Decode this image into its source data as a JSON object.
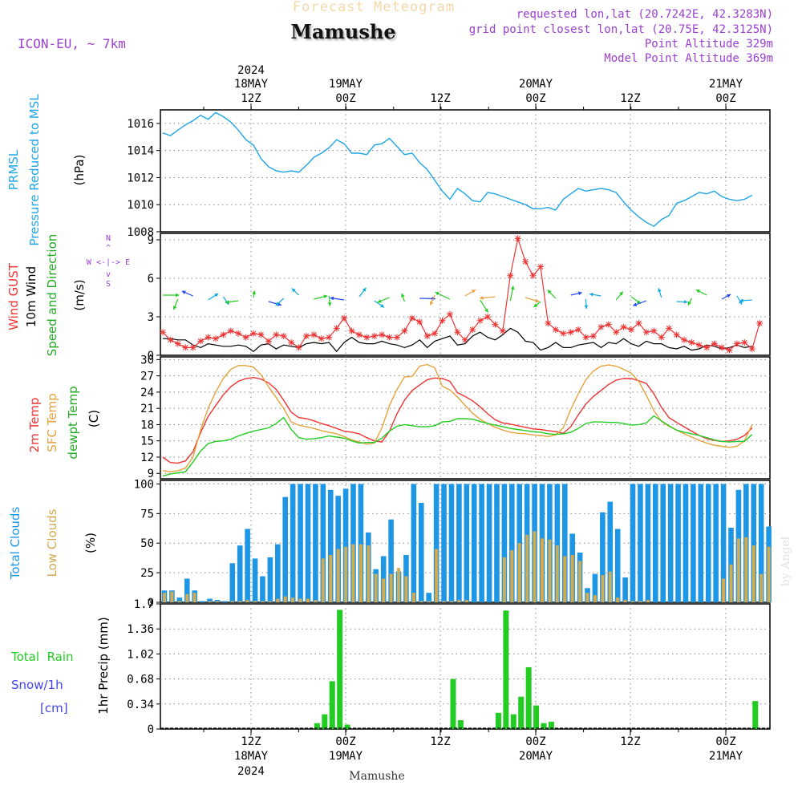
{
  "header": {
    "faint_title": "Forecast Meteogram",
    "location": "Mamushe",
    "model": "ICON-EU, ~ 7km",
    "requested_point": "requested lon,lat (20.7242E, 42.3283N)",
    "grid_point": "grid point closest lon,lat (20.75E, 42.3125N)",
    "point_altitude": "Point Altitude 329m",
    "model_altitude": "Model Point Altitude 369m",
    "credit": "by Angel",
    "bottom_location": "Mamushe"
  },
  "time_axis": {
    "top_year": "2024",
    "labels": [
      {
        "date": "18MAY",
        "time": "12Z"
      },
      {
        "date": "19MAY",
        "time": "00Z"
      },
      {
        "date": "",
        "time": "12Z"
      },
      {
        "date": "20MAY",
        "time": "00Z"
      },
      {
        "date": "",
        "time": "12Z"
      },
      {
        "date": "21MAY",
        "time": "00Z"
      }
    ],
    "bottom_year": "2024"
  },
  "colors": {
    "pressure": "#1ea5e6",
    "gust": "#ee3333",
    "wind": "#000000",
    "t2m": "#ee3333",
    "sfc": "#e6a23c",
    "dew": "#22cc22",
    "total_cloud": "#1e96e6",
    "low_cloud": "#d2aa50",
    "rain": "#22cc22",
    "purple": "#9b3fd0",
    "snow": "#4444ee"
  },
  "panel_labels": {
    "pressure": {
      "l1": "PRMSL",
      "l2": "Pressure Reduced to MSL",
      "unit": "(hPa)"
    },
    "wind": {
      "l1": "Wind GUST",
      "l2": "10m Wind",
      "l3": "Speed and Direction",
      "unit": "(m/s)",
      "compass_n": "N",
      "compass_s": "S",
      "compass_we": "W <-|-> E",
      "compass_up": "^",
      "compass_down": "v"
    },
    "temp": {
      "l1": "2m Temp",
      "l2": "SFC Temp",
      "l3": "dewpt Temp",
      "unit": "(C)"
    },
    "cloud": {
      "l1": "Total Clouds",
      "l2": "Low Clouds",
      "unit": "(%)"
    },
    "precip": {
      "l1": "Total  Rain",
      "l2": "Snow/1h",
      "l3": "[cm]",
      "unit": "1hr Precip (mm)"
    }
  },
  "chart_data": [
    {
      "type": "line",
      "title": "PRMSL Pressure Reduced to MSL",
      "ylabel": "(hPa)",
      "ylim": [
        1008,
        1017
      ],
      "yticks": [
        1008,
        1010,
        1012,
        1014,
        1016
      ],
      "x_hours_since_start": "hourly, start 18MAY ~02Z",
      "series": [
        {
          "name": "PRMSL",
          "values": [
            1015.3,
            1015.1,
            1015.5,
            1015.9,
            1016.2,
            1016.6,
            1016.3,
            1016.8,
            1016.5,
            1016.1,
            1015.5,
            1014.8,
            1014.4,
            1013.4,
            1012.8,
            1012.5,
            1012.4,
            1012.5,
            1012.4,
            1012.9,
            1013.5,
            1013.8,
            1014.2,
            1014.8,
            1014.5,
            1013.8,
            1013.8,
            1013.7,
            1014.4,
            1014.5,
            1014.9,
            1014.3,
            1013.7,
            1013.8,
            1013.1,
            1012.6,
            1011.8,
            1011.0,
            1010.4,
            1011.2,
            1010.8,
            1010.3,
            1010.2,
            1010.9,
            1010.8,
            1010.6,
            1010.4,
            1010.2,
            1010.0,
            1009.7,
            1009.7,
            1009.8,
            1009.6,
            1010.4,
            1010.8,
            1011.2,
            1011.0,
            1011.1,
            1011.2,
            1011.1,
            1010.9,
            1010.2,
            1009.6,
            1009.1,
            1008.7,
            1008.4,
            1008.9,
            1009.2,
            1010.1,
            1010.3,
            1010.6,
            1010.9,
            1010.8,
            1011.0,
            1010.6,
            1010.4,
            1010.3,
            1010.4,
            1010.7
          ]
        }
      ]
    },
    {
      "type": "line",
      "title": "Wind GUST / 10m Wind",
      "ylabel": "(m/s)",
      "ylim": [
        0,
        9.5
      ],
      "yticks": [
        0,
        3,
        6,
        9
      ],
      "series": [
        {
          "name": "Wind GUST",
          "values": [
            1.8,
            1.2,
            0.9,
            0.6,
            0.6,
            1.1,
            1.4,
            1.3,
            1.6,
            1.9,
            1.7,
            1.4,
            1.7,
            1.6,
            1.1,
            1.6,
            1.5,
            1.0,
            0.6,
            1.5,
            1.6,
            1.3,
            1.4,
            2.1,
            2.9,
            1.9,
            1.6,
            1.4,
            1.5,
            1.6,
            1.4,
            1.4,
            1.9,
            2.9,
            2.6,
            1.5,
            1.7,
            2.7,
            3.2,
            1.8,
            1.2,
            2.0,
            2.7,
            3.0,
            2.4,
            1.9,
            6.2,
            9.1,
            7.3,
            6.2,
            6.9,
            2.5,
            2.0,
            1.7,
            1.8,
            2.0,
            1.4,
            1.5,
            2.2,
            2.4,
            1.8,
            2.2,
            2.0,
            2.5,
            1.8,
            1.9,
            1.4,
            2.1,
            1.6,
            1.2,
            1.0,
            0.8,
            0.6,
            0.9,
            0.6,
            0.4,
            0.9,
            1.0,
            0.5,
            2.5
          ]
        },
        {
          "name": "10m Wind",
          "values": [
            1.3,
            1.3,
            1.2,
            1.2,
            0.8,
            0.6,
            0.9,
            0.8,
            0.7,
            0.7,
            0.8,
            0.7,
            0.3,
            0.8,
            0.9,
            0.5,
            0.8,
            0.7,
            0.6,
            0.9,
            1.0,
            0.9,
            1.0,
            0.3,
            1.0,
            1.4,
            1.0,
            0.9,
            0.9,
            1.1,
            0.9,
            0.8,
            0.6,
            0.8,
            1.2,
            0.6,
            1.1,
            1.3,
            1.5,
            0.8,
            0.9,
            1.5,
            1.8,
            1.4,
            1.2,
            1.6,
            2.1,
            1.8,
            1.1,
            1.0,
            0.4,
            0.6,
            1.0,
            0.6,
            0.6,
            0.8,
            0.9,
            1.0,
            0.6,
            1.0,
            0.9,
            1.3,
            0.9,
            0.7,
            1.1,
            0.9,
            0.9,
            0.6,
            0.5,
            0.7,
            0.4,
            0.5,
            0.8,
            0.7,
            0.5,
            0.6,
            0.8,
            0.6,
            0.7
          ]
        }
      ]
    },
    {
      "type": "line",
      "title": "2m Temp / SFC Temp / dewpt Temp",
      "ylabel": "(C)",
      "ylim": [
        8,
        30.5
      ],
      "yticks": [
        9,
        12,
        15,
        18,
        21,
        24,
        27,
        30
      ],
      "series": [
        {
          "name": "2m Temp",
          "values": [
            12.0,
            11.0,
            10.9,
            11.3,
            13.0,
            16.5,
            19.5,
            21.5,
            23.5,
            25.0,
            26.0,
            26.5,
            26.7,
            26.4,
            25.7,
            24.5,
            22.5,
            20.3,
            19.3,
            19.1,
            18.7,
            18.2,
            17.8,
            17.3,
            16.8,
            16.6,
            16.3,
            15.6,
            15.0,
            14.8,
            16.8,
            20.0,
            22.5,
            24.3,
            25.3,
            26.3,
            26.6,
            26.5,
            26.0,
            23.9,
            23.2,
            22.4,
            21.3,
            20.0,
            18.9,
            18.3,
            18.1,
            17.8,
            17.5,
            17.2,
            17.1,
            16.9,
            16.7,
            16.4,
            17.6,
            19.8,
            21.8,
            23.2,
            24.3,
            25.4,
            26.2,
            26.5,
            26.5,
            26.1,
            25.6,
            23.7,
            21.2,
            19.3,
            18.4,
            17.6,
            16.8,
            16.0,
            15.4,
            15.1,
            14.9,
            15.0,
            15.3,
            16.0,
            17.4
          ]
        },
        {
          "name": "SFC Temp",
          "values": [
            9.5,
            9.3,
            9.5,
            10.0,
            12.0,
            17.0,
            21.0,
            24.0,
            26.5,
            28.2,
            28.9,
            28.9,
            28.6,
            27.2,
            25.0,
            23.0,
            21.0,
            18.5,
            17.9,
            17.6,
            17.3,
            16.9,
            16.6,
            16.3,
            15.8,
            15.2,
            14.8,
            14.4,
            14.6,
            17.4,
            21.5,
            24.5,
            26.8,
            26.9,
            28.8,
            29.1,
            28.5,
            25.1,
            24.4,
            23.1,
            21.6,
            20.1,
            19.0,
            18.2,
            17.5,
            17.0,
            16.6,
            16.4,
            16.3,
            16.1,
            16.0,
            15.8,
            16.1,
            17.4,
            20.8,
            23.7,
            26.3,
            27.9,
            28.8,
            29.0,
            28.8,
            28.2,
            27.5,
            26.0,
            23.4,
            20.6,
            18.6,
            17.7,
            17.0,
            16.3,
            15.7,
            15.1,
            14.6,
            14.2,
            14.0,
            13.8,
            14.0,
            15.0,
            18.0
          ]
        },
        {
          "name": "dewpt Temp",
          "values": [
            8.5,
            8.9,
            9.1,
            9.3,
            11.1,
            13.1,
            14.5,
            14.9,
            15.0,
            15.3,
            15.9,
            16.4,
            16.8,
            17.1,
            17.4,
            18.2,
            19.3,
            17.1,
            15.6,
            15.3,
            15.4,
            15.6,
            15.9,
            15.7,
            15.5,
            15.0,
            14.6,
            14.7,
            14.7,
            15.5,
            16.8,
            17.7,
            18.0,
            17.8,
            17.6,
            17.6,
            17.8,
            18.5,
            18.6,
            19.1,
            19.1,
            19.0,
            18.6,
            18.2,
            17.9,
            17.6,
            17.3,
            17.1,
            16.9,
            16.7,
            16.6,
            16.3,
            16.2,
            16.3,
            16.6,
            17.3,
            18.2,
            18.5,
            18.5,
            18.4,
            18.4,
            18.2,
            17.9,
            18.0,
            18.3,
            19.6,
            18.7,
            17.8,
            17.0,
            16.6,
            16.3,
            16.0,
            15.6,
            15.2,
            14.9,
            14.8,
            14.9,
            14.9,
            16.2
          ]
        }
      ]
    },
    {
      "type": "bar",
      "title": "Total Clouds / Low Clouds",
      "ylabel": "(%)",
      "ylim": [
        0,
        103
      ],
      "yticks": [
        0,
        25,
        50,
        75,
        100
      ],
      "series": [
        {
          "name": "Total Clouds",
          "values": [
            10,
            10,
            4,
            20,
            10,
            1,
            3,
            2,
            1,
            33,
            48,
            62,
            37,
            22,
            38,
            49,
            89,
            100,
            100,
            100,
            100,
            100,
            95,
            90,
            96,
            100,
            100,
            59,
            28,
            39,
            70,
            26,
            40,
            100,
            84,
            8,
            100,
            100,
            100,
            100,
            100,
            100,
            100,
            100,
            100,
            100,
            100,
            100,
            100,
            100,
            100,
            100,
            100,
            100,
            58,
            42,
            12,
            24,
            76,
            85,
            62,
            21,
            100,
            100,
            100,
            100,
            100,
            100,
            100,
            100,
            100,
            100,
            100,
            100,
            100,
            63,
            95,
            100,
            100,
            100,
            64
          ]
        },
        {
          "name": "Low Clouds",
          "values": [
            8,
            9,
            1,
            7,
            8,
            0,
            1,
            1,
            0,
            1,
            1,
            2,
            1,
            1,
            1,
            3,
            5,
            4,
            3,
            3,
            2,
            37,
            40,
            45,
            47,
            49,
            49,
            48,
            24,
            20,
            24,
            29,
            22,
            8,
            1,
            1,
            45,
            1,
            1,
            2,
            2,
            0,
            0,
            0,
            0,
            38,
            44,
            50,
            57,
            60,
            54,
            53,
            48,
            39,
            40,
            35,
            8,
            6,
            23,
            26,
            4,
            2,
            1,
            1,
            2,
            0,
            0,
            0,
            0,
            0,
            0,
            0,
            0,
            0,
            20,
            32,
            54,
            55,
            48,
            24,
            47
          ]
        }
      ]
    },
    {
      "type": "bar",
      "title": "Total Rain / Snow 1hr Precip",
      "ylabel": "1hr Precip (mm)",
      "ylim": [
        0,
        1.7
      ],
      "yticks": [
        0,
        0.34,
        0.68,
        1.02,
        1.36,
        1.7
      ],
      "series": [
        {
          "name": "Total Rain",
          "values": [
            0,
            0,
            0,
            0,
            0,
            0,
            0,
            0,
            0,
            0,
            0,
            0,
            0,
            0,
            0,
            0,
            0,
            0,
            0,
            0,
            0.08,
            0.2,
            0.65,
            1.62,
            0.06,
            0,
            0,
            0,
            0,
            0,
            0,
            0,
            0,
            0,
            0,
            0,
            0,
            0,
            0.68,
            0.12,
            0,
            0,
            0,
            0,
            0.22,
            1.61,
            0.2,
            0.44,
            0.84,
            0.32,
            0.08,
            0.1,
            0,
            0,
            0,
            0,
            0,
            0,
            0,
            0,
            0,
            0,
            0,
            0,
            0,
            0,
            0,
            0,
            0,
            0,
            0,
            0,
            0,
            0,
            0,
            0,
            0,
            0,
            0.38
          ]
        }
      ]
    }
  ]
}
